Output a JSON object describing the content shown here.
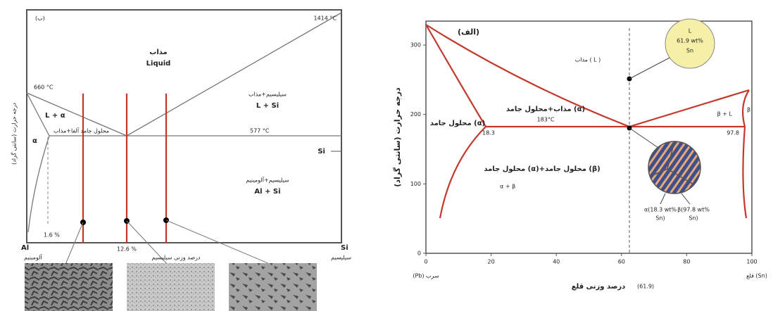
{
  "left_diagram": {
    "label": "(ب)",
    "y_axis_title": "درجه حرارت (سانتی گراد)",
    "temps": {
      "si_melt": "1414 °C",
      "al_melt": "660 °C",
      "eutectic": "577 °C"
    },
    "regions": {
      "liquid_fa": "مذاب",
      "liquid_en": "Liquid",
      "l_si_fa": "سیلیسیم+مذاب",
      "l_si_en": "L + Si",
      "l_alpha_en": "L + α",
      "l_alpha_fa": "محلول جامد آلفا+مذاب",
      "alpha": "α",
      "al_si_fa": "سیلیسیم+آلومینیم",
      "al_si_en": "Al + Si"
    },
    "si_marker": "Si",
    "compositions": {
      "solubility": "1.6 %",
      "eutectic": "12.6 %"
    },
    "x_axis": {
      "left_end": "Al",
      "right_end": "Si",
      "left_name": "آلومینیم",
      "right_name": "سیلیسیم",
      "title": "درصد وزنی سیلیسیم"
    }
  },
  "right_diagram": {
    "label": "(الف)",
    "y_axis_title": "درجه حرارت (سانتی گراد)",
    "yticks": [
      0,
      100,
      200,
      300
    ],
    "xticks": [
      0,
      20,
      40,
      60,
      80,
      100
    ],
    "regions": {
      "liquid": "مذاب ( L )",
      "l_alpha": "مذاب+محلول جامد (α)",
      "alpha": "محلول جامد (α)",
      "beta_l": "β + L",
      "beta": "β",
      "alpha_beta_fa": "محلول جامد (α)+محلول جامد (β)",
      "alpha_beta_en": "α + β"
    },
    "eutectic_temp": "183°C",
    "compositions": {
      "alpha_max": "18.3",
      "beta_min": "97.8"
    },
    "callouts": {
      "liquid": [
        "L",
        "61.9 wt%",
        "Sn"
      ],
      "alpha": [
        "α(18.3 wt%",
        "Sn)"
      ],
      "beta": [
        "β(97.8 wt%",
        "Sn)"
      ]
    },
    "x_axis": {
      "left_end": "(Pb) سرب",
      "right_end": "قلع (Sn)",
      "title": "درصد وزنی قلع",
      "eutectic_comp": "(61.9)"
    }
  }
}
